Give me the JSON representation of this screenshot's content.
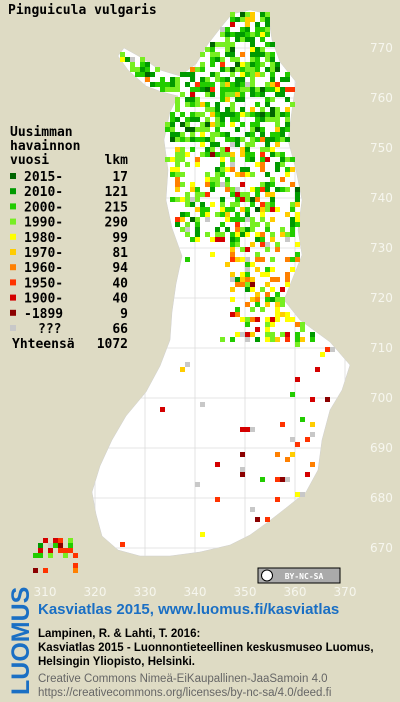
{
  "title": "Pinguicula vulgaris",
  "legend": {
    "heading": [
      "Uusimman",
      "havainnon"
    ],
    "columns": [
      "vuosi",
      "lkm"
    ],
    "entries": [
      {
        "label": "2015-",
        "count": 17,
        "color": "#006400"
      },
      {
        "label": "2010-",
        "count": 121,
        "color": "#009a00"
      },
      {
        "label": "2000-",
        "count": 215,
        "color": "#22cc00"
      },
      {
        "label": "1990-",
        "count": 290,
        "color": "#77ee22"
      },
      {
        "label": "1980-",
        "count": 99,
        "color": "#ffff00"
      },
      {
        "label": "1970-",
        "count": 81,
        "color": "#ffcc00"
      },
      {
        "label": "1960-",
        "count": 94,
        "color": "#ff8000"
      },
      {
        "label": "1950-",
        "count": 40,
        "color": "#ff3300"
      },
      {
        "label": "1900-",
        "count": 40,
        "color": "#d40000"
      },
      {
        "label": "-1899",
        "count": 9,
        "color": "#8b0000"
      },
      {
        "label": "???",
        "count": 66,
        "color": "#c8c8c8"
      }
    ],
    "total_label": "Yhteensä",
    "total": 1072
  },
  "y_labels": [
    770,
    760,
    750,
    740,
    730,
    720,
    710,
    700,
    690,
    680,
    670
  ],
  "x_labels": [
    310,
    320,
    330,
    340,
    350,
    360,
    370
  ],
  "license_badge": "BY-NC-SA",
  "footer": {
    "brand": "LUOMUS",
    "link": "Kasviatlas 2015, www.luomus.fi/kasviatlas",
    "citation": [
      "Lampinen, R. & Lahti, T. 2016:",
      "Kasviatlas 2015 - Luonnontieteellinen keskusmuseo Luomus,",
      "Helsingin Yliopisto, Helsinki."
    ],
    "license": [
      "Creative Commons Nimeä-EiKaupallinen-JaaSamoin 4.0",
      "https://creativecommons.org/licenses/by-nc-sa/4.0/deed.fi"
    ]
  }
}
